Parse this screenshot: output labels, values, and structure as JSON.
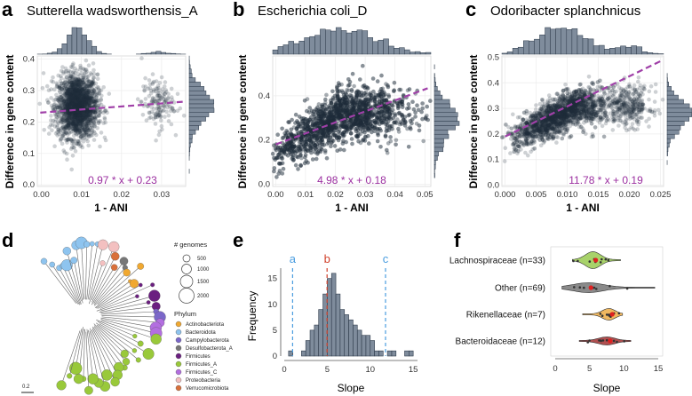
{
  "figure": {
    "panel_a": {
      "label": "a",
      "title": "Sutterella wadsworthensis_A",
      "xlabel": "1 - ANI",
      "ylabel": "Difference in gene content",
      "xticks": [
        "0.00",
        "0.01",
        "0.02",
        "0.03"
      ],
      "yticks": [
        "0.0",
        "0.1",
        "0.2",
        "0.3",
        "0.4"
      ],
      "equation": "0.97 * x + 0.23"
    },
    "panel_b": {
      "label": "b",
      "title": "Escherichia coli_D",
      "xlabel": "1 - ANI",
      "ylabel": "Difference in gene content",
      "xticks": [
        "0.00",
        "0.01",
        "0.02",
        "0.03",
        "0.04",
        "0.05"
      ],
      "yticks": [
        "0.0",
        "0.2",
        "0.4"
      ],
      "equation": "4.98 * x + 0.18"
    },
    "panel_c": {
      "label": "c",
      "title": "Odoribacter splanchnicus",
      "xlabel": "1 - ANI",
      "ylabel": "Difference in gene content",
      "xticks": [
        "0.000",
        "0.005",
        "0.010",
        "0.015",
        "0.020",
        "0.025"
      ],
      "yticks": [
        "0.0",
        "0.1",
        "0.2",
        "0.3",
        "0.4",
        "0.5"
      ],
      "equation": "11.78 * x + 0.19"
    },
    "panel_d": {
      "label": "d",
      "size_legend_title": "# genomes",
      "size_legend": [
        "500",
        "1000",
        "1500",
        "2000"
      ],
      "phylum_title": "Phylum",
      "scale_bar": "0.2",
      "phyla": [
        {
          "name": "Actinobacteriota",
          "color": "#f0a830"
        },
        {
          "name": "Bacteroidota",
          "color": "#8ec4ef"
        },
        {
          "name": "Campylobacterota",
          "color": "#7b67c9"
        },
        {
          "name": "Desulfobacterota_A",
          "color": "#777777"
        },
        {
          "name": "Firmicutes",
          "color": "#6b1f80"
        },
        {
          "name": "Firmicutes_A",
          "color": "#99c93a"
        },
        {
          "name": "Firmicutes_C",
          "color": "#b36ee0"
        },
        {
          "name": "Proteobacteria",
          "color": "#f3c0c0"
        },
        {
          "name": "Verrucomicrobiota",
          "color": "#d9703a"
        }
      ]
    },
    "panel_e": {
      "label": "e",
      "xlabel": "Slope",
      "ylabel": "Frequency",
      "xticks": [
        "0",
        "5",
        "10",
        "15"
      ],
      "yticks": [
        "0",
        "5",
        "10",
        "15"
      ],
      "ref_lines": [
        {
          "label": "a",
          "x": 0.97,
          "color": "#4a9de0"
        },
        {
          "label": "b",
          "x": 4.98,
          "color": "#d0402a"
        },
        {
          "label": "c",
          "x": 11.78,
          "color": "#4a9de0"
        }
      ]
    },
    "panel_f": {
      "label": "f",
      "xlabel": "Slope",
      "xticks": [
        "0",
        "5",
        "10",
        "15"
      ],
      "groups": [
        {
          "name": "Lachnospiraceae (n=33)",
          "color": "#a8d26a"
        },
        {
          "name": "Other (n=69)",
          "color": "#8a8a8a"
        },
        {
          "name": "Rikenellaceae (n=7)",
          "color": "#f0b860"
        },
        {
          "name": "Bacteroidaceae (n=12)",
          "color": "#b05050"
        }
      ]
    }
  },
  "chart_data": [
    {
      "type": "scatter",
      "title": "Sutterella wadsworthensis_A",
      "xlabel": "1 - ANI",
      "ylabel": "Difference in gene content",
      "xlim": [
        -0.001,
        0.036
      ],
      "ylim": [
        -0.005,
        0.41
      ],
      "fit": {
        "slope": 0.97,
        "intercept": 0.23
      },
      "clusters": [
        {
          "x_center": 0.009,
          "x_sd": 0.0025,
          "y_center": 0.25,
          "y_sd": 0.05,
          "weight": 0.93
        },
        {
          "x_center": 0.029,
          "x_sd": 0.002,
          "y_center": 0.26,
          "y_sd": 0.04,
          "weight": 0.07
        }
      ]
    },
    {
      "type": "scatter",
      "title": "Escherichia coli_D",
      "xlabel": "1 - ANI",
      "ylabel": "Difference in gene content",
      "xlim": [
        -0.001,
        0.052
      ],
      "ylim": [
        -0.01,
        0.58
      ],
      "fit": {
        "slope": 4.98,
        "intercept": 0.18
      },
      "clusters": [
        {
          "x_center": 0.022,
          "x_sd": 0.012,
          "y_center": 0.32,
          "y_sd": 0.06,
          "weight": 1.0
        }
      ]
    },
    {
      "type": "scatter",
      "title": "Odoribacter splanchnicus",
      "xlabel": "1 - ANI",
      "ylabel": "Difference in gene content",
      "xlim": [
        -0.0005,
        0.0255
      ],
      "ylim": [
        -0.005,
        0.505
      ],
      "fit": {
        "slope": 11.78,
        "intercept": 0.19
      },
      "clusters": [
        {
          "x_center": 0.009,
          "x_sd": 0.004,
          "y_center": 0.28,
          "y_sd": 0.05,
          "weight": 0.88
        },
        {
          "x_center": 0.02,
          "x_sd": 0.0018,
          "y_center": 0.31,
          "y_sd": 0.04,
          "weight": 0.12
        }
      ]
    },
    {
      "type": "bar",
      "title": "",
      "xlabel": "Slope",
      "ylabel": "Frequency",
      "xlim": [
        0,
        15.5
      ],
      "ylim": [
        0,
        17
      ],
      "bin_width": 0.5,
      "bin_starts": [
        0.5,
        1,
        1.5,
        2,
        2.5,
        3,
        3.5,
        4,
        4.5,
        5,
        5.5,
        6,
        6.5,
        7,
        7.5,
        8,
        8.5,
        9,
        9.5,
        10,
        10.5,
        11,
        11.5,
        12,
        12.5,
        13,
        13.5,
        14,
        14.5
      ],
      "values": [
        1,
        0,
        0,
        1,
        3,
        5,
        6,
        9,
        12,
        15,
        16,
        12,
        9,
        8,
        7,
        6,
        5,
        4,
        4,
        3,
        1,
        1,
        0,
        1,
        1,
        0,
        0,
        1,
        1
      ]
    },
    {
      "type": "violin",
      "title": "",
      "xlabel": "Slope",
      "xlim": [
        0,
        15
      ],
      "categories": [
        "Lachnospiraceae (n=33)",
        "Other (n=69)",
        "Rikenellaceae (n=7)",
        "Bacteroidaceae (n=12)"
      ],
      "medians": [
        5.5,
        4.8,
        7.8,
        7.5
      ],
      "means": [
        5.9,
        5.2,
        8.3,
        8.0
      ],
      "ranges": [
        [
          2.5,
          9.5
        ],
        [
          1.0,
          14.5
        ],
        [
          4.0,
          9.8
        ],
        [
          3.5,
          11.0
        ]
      ]
    }
  ]
}
